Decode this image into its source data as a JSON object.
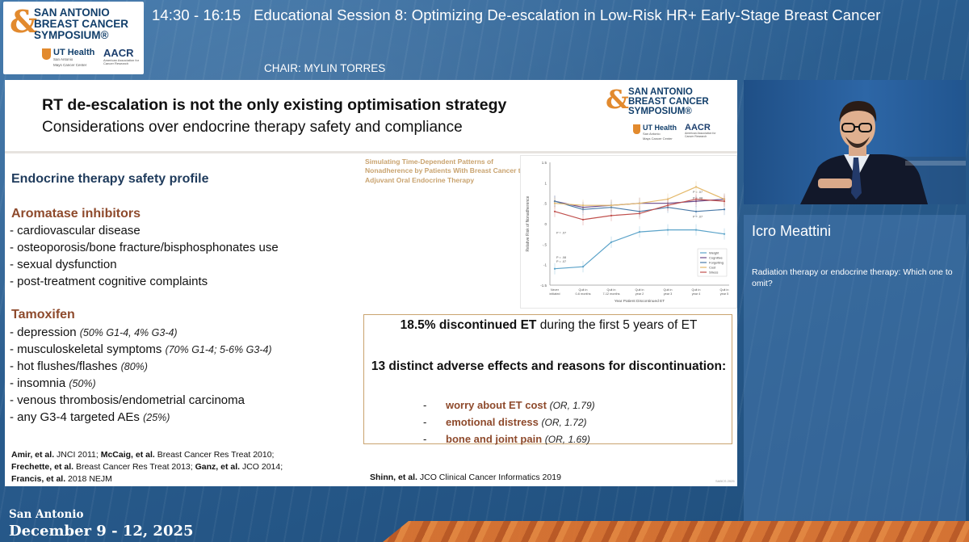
{
  "header": {
    "time": "14:30 - 16:15",
    "session_title": "Educational Session 8: Optimizing De-escalation in Low-Risk HR+ Early-Stage Breast Cancer",
    "chair": "CHAIR: MYLIN TORRES"
  },
  "logo": {
    "line1": "SAN ANTONIO",
    "line2": "BREAST CANCER",
    "line3": "SYMPOSIUM®",
    "partner1": "UT Health",
    "partner1_sub": "San Antonio",
    "partner1_sub2": "Mays Cancer Center",
    "partner2": "AACR",
    "partner2_sub": "American Association for Cancer Research"
  },
  "slide": {
    "title": "RT de-escalation is not the only existing optimisation strategy",
    "subtitle": "Considerations over endocrine therapy safety and compliance",
    "section_label": "Endocrine therapy safety profile",
    "groups": [
      {
        "heading": "Aromatase inhibitors",
        "items": [
          {
            "text": "- cardiovascular disease",
            "note": ""
          },
          {
            "text": "- osteoporosis/bone fracture/bisphosphonates use",
            "note": ""
          },
          {
            "text": "- sexual dysfunction",
            "note": ""
          },
          {
            "text": "- post-treatment cognitive complaints",
            "note": ""
          }
        ]
      },
      {
        "heading": "Tamoxifen",
        "items": [
          {
            "text": "- depression ",
            "note": "(50% G1-4, 4% G3-4)"
          },
          {
            "text": "- musculoskeletal symptoms ",
            "note": "(70% G1-4; 5-6% G3-4)"
          },
          {
            "text": "- hot flushes/flashes ",
            "note": "(80%)"
          },
          {
            "text": "- insomnia ",
            "note": "(50%)"
          },
          {
            "text": "- venous thrombosis/endometrial carcinoma",
            "note": ""
          },
          {
            "text": "- any G3-4 targeted AEs ",
            "note": "(25%)"
          }
        ]
      }
    ],
    "references": [
      {
        "author": "Amir, et al.",
        "text": " JNCI 2011; "
      },
      {
        "author": "McCaig, et al.",
        "text": " Breast Cancer Res Treat 2010;"
      },
      {
        "author": "Frechette, et al.",
        "text": " Breast Cancer Res Treat 2013; "
      },
      {
        "author": "Ganz, et al.",
        "text": " JCO 2014;"
      },
      {
        "author": "Francis, et al.",
        "text": " 2018 NEJM"
      }
    ],
    "chart_title": "Simulating Time-Dependent Patterns of Nonadherence by Patients With Breast Cancer to Adjuvant Oral Endocrine Therapy",
    "et_box": {
      "stat_bold": "18.5% discontinued ET",
      "stat_rest": " during the first 5 years of ET",
      "heading": "13 distinct adverse effects and reasons for discontinuation:",
      "reasons": [
        {
          "dash": "-",
          "label": "worry about ET cost",
          "or": "(OR, 1.79)"
        },
        {
          "dash": "-",
          "label": "emotional distress",
          "or": "(OR, 1.72)"
        },
        {
          "dash": "-",
          "label": "bone and joint pain",
          "or": "(OR, 1.69)"
        }
      ]
    },
    "shinn_author": "Shinn, et al.",
    "shinn_rest": " JCO Clinical Cancer Informatics 2019",
    "tiny_mark": "SABCS 2025"
  },
  "chart_data": {
    "type": "line",
    "title": "Simulating Time-Dependent Patterns of Nonadherence by Patients With Breast Cancer to Adjuvant Oral Endocrine Therapy",
    "xlabel": "Year Patient Discontinued ET",
    "ylabel": "Relative Risk of Nonadherence",
    "ylim": [
      -1.5,
      1.5
    ],
    "yticks": [
      "1.5",
      "1",
      ".5",
      "0",
      "-.5",
      "-1",
      "-1.5"
    ],
    "categories": [
      "Never initiated",
      "Quit in 0-6 months",
      "Quit in 7-12 months",
      "Quit in year 2",
      "Quit in year 3",
      "Quit in year 4",
      "Quit in year 5"
    ],
    "series": [
      {
        "name": "Weight",
        "color": "#5ba3c9",
        "values": [
          -1.1,
          -1.05,
          -0.45,
          -0.2,
          -0.15,
          -0.15,
          -0.25
        ]
      },
      {
        "name": "Cognitive",
        "color": "#6a4a8a",
        "values": [
          0.55,
          0.4,
          0.45,
          0.5,
          0.5,
          0.55,
          0.6
        ]
      },
      {
        "name": "Forgetting",
        "color": "#4a7aa8",
        "values": [
          0.55,
          0.35,
          0.4,
          0.3,
          0.4,
          0.3,
          0.35
        ]
      },
      {
        "name": "Cost",
        "color": "#e4b96b",
        "values": [
          0.5,
          0.45,
          0.45,
          0.5,
          0.6,
          0.9,
          0.6
        ]
      },
      {
        "name": "Stress",
        "color": "#c0504d",
        "values": [
          0.3,
          0.1,
          0.2,
          0.25,
          0.45,
          0.6,
          0.55
        ]
      }
    ],
    "annotations": [
      "P = .07",
      "P = .08",
      "P = .07",
      "P = .08",
      "P = .07",
      "P = .07"
    ]
  },
  "speaker": {
    "name": "Icro Meattini",
    "talk_title": "Radiation therapy or endocrine therapy: Which one to omit?"
  },
  "footer": {
    "city": "San Antonio",
    "dates": "December 9 - 12, 2025"
  },
  "colors": {
    "accent_brown": "#8e4a2c",
    "navy": "#1f3b5c",
    "gold": "#c9a36f",
    "orange": "#e2742c"
  }
}
